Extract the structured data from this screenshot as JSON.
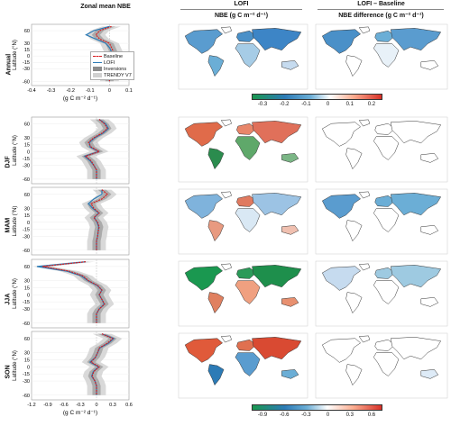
{
  "headers": {
    "col1_title": "Zonal mean NBE",
    "lofi_group": "LOFI",
    "diff_group": "LOFI – Baseline",
    "col2_title": "NBE (g C m⁻² d⁻¹)",
    "col3_title": "NBE difference (g C m⁻² d⁻¹)"
  },
  "rows": [
    {
      "label": "Annual",
      "key": "annual"
    },
    {
      "label": "DJF",
      "key": "djf"
    },
    {
      "label": "MAM",
      "key": "mam"
    },
    {
      "label": "JJA",
      "key": "jja"
    },
    {
      "label": "SON",
      "key": "son"
    }
  ],
  "ylabel": "Latitude (°N)",
  "lat_ticks": [
    "60",
    "30",
    "15",
    "0",
    "-15",
    "-30",
    "-60"
  ],
  "legend": {
    "baseline": "Baseline",
    "lofi": "LOFI",
    "inversions": "Inversions",
    "trendy": "TRENDY V7"
  },
  "xlabel": "(g C m⁻² d⁻¹)",
  "annual_xticks": [
    "-0.4",
    "-0.3",
    "-0.2",
    "-0.1",
    "0",
    "0.1"
  ],
  "seasonal_xticks": [
    "-1.2",
    "-0.9",
    "-0.6",
    "-0.3",
    "0",
    "0.3",
    "0.6"
  ],
  "colorbar_annual": {
    "ticks": [
      "-0.3",
      "-0.2",
      "-0.1",
      "0",
      "0.1",
      "0.2"
    ]
  },
  "colorbar_seasonal": {
    "ticks": [
      "-0.9",
      "-0.6",
      "-0.3",
      "0",
      "0.3",
      "0.6"
    ]
  },
  "colors": {
    "baseline": "#d7191c",
    "lofi": "#2c7bb6",
    "inversions": "#8c8c8c",
    "trendy": "#d0d0d0",
    "neg": "#1a9850",
    "mid_blue": "#4a90c8",
    "pos": "#d73027"
  },
  "chart_data": [
    {
      "type": "line",
      "panel": "Annual",
      "title": "",
      "xlabel": "(g C m⁻² d⁻¹)",
      "ylabel": "Latitude (°N)",
      "xlim": [
        -0.4,
        0.1
      ],
      "ylim": [
        -70,
        75
      ],
      "lat": [
        70,
        60,
        50,
        40,
        30,
        20,
        10,
        0,
        -10,
        -20,
        -30,
        -40,
        -50,
        -60
      ],
      "series": [
        {
          "name": "Baseline",
          "values": [
            0.01,
            -0.05,
            -0.07,
            -0.05,
            0.0,
            0.01,
            0.02,
            0.0,
            -0.01,
            0.01,
            0.0,
            0.0,
            0.0,
            0.0
          ]
        },
        {
          "name": "LOFI",
          "values": [
            0.0,
            -0.08,
            -0.12,
            -0.07,
            -0.02,
            0.0,
            0.01,
            -0.01,
            -0.02,
            0.0,
            -0.01,
            0.0,
            0.0,
            0.0
          ]
        }
      ]
    },
    {
      "type": "line",
      "panel": "DJF",
      "title": "",
      "xlim": [
        -1.2,
        0.6
      ],
      "ylim": [
        -70,
        75
      ],
      "lat": [
        70,
        60,
        50,
        40,
        30,
        20,
        10,
        0,
        -10,
        -20,
        -30,
        -40,
        -50,
        -60
      ],
      "series": [
        {
          "name": "Baseline",
          "values": [
            0.05,
            0.15,
            0.2,
            0.1,
            -0.05,
            -0.15,
            -0.1,
            0.05,
            -0.2,
            -0.1,
            -0.05,
            0.0,
            0.0,
            0.0
          ]
        },
        {
          "name": "LOFI",
          "values": [
            0.05,
            0.17,
            0.22,
            0.12,
            -0.03,
            -0.13,
            -0.12,
            0.04,
            -0.22,
            -0.12,
            -0.05,
            0.0,
            0.0,
            0.0
          ]
        }
      ]
    },
    {
      "type": "line",
      "panel": "MAM",
      "title": "",
      "xlim": [
        -1.2,
        0.6
      ],
      "ylim": [
        -70,
        75
      ],
      "lat": [
        70,
        60,
        50,
        40,
        30,
        20,
        10,
        0,
        -10,
        -20,
        -30,
        -40,
        -50,
        -60
      ],
      "series": [
        {
          "name": "Baseline",
          "values": [
            0.1,
            0.2,
            0.1,
            -0.1,
            -0.05,
            0.05,
            -0.05,
            0.02,
            0.05,
            0.03,
            0.02,
            0.0,
            0.0,
            0.0
          ]
        },
        {
          "name": "LOFI",
          "values": [
            0.1,
            0.1,
            -0.05,
            -0.15,
            -0.07,
            0.04,
            -0.04,
            0.01,
            0.04,
            0.03,
            0.02,
            0.0,
            0.0,
            0.0
          ]
        }
      ]
    },
    {
      "type": "line",
      "panel": "JJA",
      "title": "",
      "xlim": [
        -1.2,
        0.6
      ],
      "ylim": [
        -70,
        75
      ],
      "lat": [
        70,
        60,
        50,
        40,
        30,
        20,
        10,
        0,
        -10,
        -20,
        -30,
        -40,
        -50,
        -60
      ],
      "series": [
        {
          "name": "Baseline",
          "values": [
            -0.2,
            -1.0,
            -0.5,
            -0.25,
            -0.15,
            0.02,
            0.1,
            0.05,
            0.1,
            0.15,
            0.05,
            0.0,
            0.0,
            0.0
          ]
        },
        {
          "name": "LOFI",
          "values": [
            -0.2,
            -1.1,
            -0.55,
            -0.28,
            -0.16,
            0.01,
            0.1,
            0.05,
            0.1,
            0.14,
            0.05,
            0.0,
            0.0,
            0.0
          ]
        }
      ]
    },
    {
      "type": "line",
      "panel": "SON",
      "title": "",
      "xlim": [
        -1.2,
        0.6
      ],
      "ylim": [
        -70,
        75
      ],
      "lat": [
        70,
        60,
        50,
        40,
        30,
        20,
        10,
        0,
        -10,
        -20,
        -30,
        -40,
        -50,
        -60
      ],
      "series": [
        {
          "name": "Baseline",
          "values": [
            0.1,
            0.3,
            0.2,
            0.05,
            0.02,
            -0.02,
            -0.1,
            0.05,
            -0.05,
            -0.08,
            -0.03,
            0.0,
            0.0,
            0.0
          ]
        },
        {
          "name": "LOFI",
          "values": [
            0.1,
            0.32,
            0.22,
            0.06,
            0.02,
            -0.02,
            -0.12,
            0.04,
            -0.06,
            -0.09,
            -0.03,
            0.0,
            0.0,
            0.0
          ]
        }
      ]
    }
  ]
}
